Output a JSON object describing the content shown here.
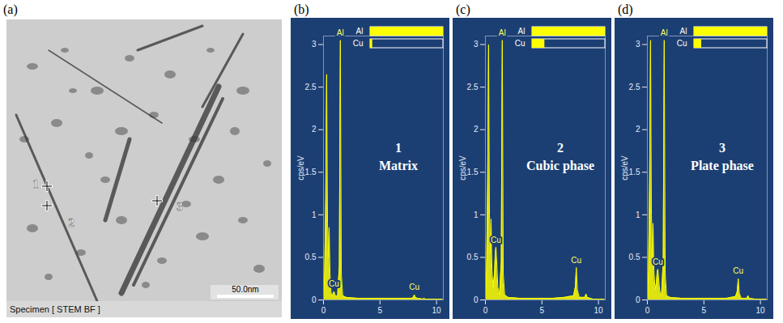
{
  "micrograph": {
    "panel_label": "(a)",
    "caption": "Specimen [ STEM BF ]",
    "scale_bar": "50.0nm",
    "points": [
      "1",
      "2",
      "3"
    ]
  },
  "chart_data": [
    {
      "type": "area",
      "panel_label": "(b)",
      "title": "1",
      "subtitle": "Matrix",
      "y_label": "cps/eV",
      "color": "#ffff00",
      "grid": false,
      "xlim": [
        0,
        10.6
      ],
      "xticks": [
        0,
        5,
        10
      ],
      "ylim": [
        0,
        3.1
      ],
      "yticks": [
        0,
        0.5,
        1,
        1.5,
        2,
        2.5,
        3
      ],
      "x": [
        0,
        0.1,
        0.2,
        0.28,
        0.36,
        0.44,
        0.5,
        0.58,
        0.68,
        0.8,
        0.87,
        0.93,
        1.0,
        1.1,
        1.25,
        1.4,
        1.49,
        1.58,
        1.7,
        2,
        3,
        4,
        5,
        6,
        7,
        7.8,
        7.95,
        8.04,
        8.13,
        8.3,
        8.8,
        8.9,
        9.0,
        9.5,
        10,
        10.5
      ],
      "values": [
        0,
        0.3,
        1.2,
        2.65,
        0.9,
        0.5,
        0.85,
        0.3,
        0.08,
        0.05,
        0.08,
        0.1,
        0.07,
        0.04,
        0.05,
        0.4,
        3.05,
        0.3,
        0.05,
        0.03,
        0.02,
        0.02,
        0.02,
        0.02,
        0.02,
        0.02,
        0.03,
        0.06,
        0.03,
        0.02,
        0.01,
        0.02,
        0.01,
        0.01,
        0.01,
        0.01
      ],
      "annotations": [
        {
          "text": "Al",
          "x": 1.49
        },
        {
          "text": "Cu",
          "x": 0.93
        },
        {
          "text": "Cu",
          "x": 8.04
        }
      ],
      "composition": {
        "categories": [
          "Al",
          "Cu"
        ],
        "values": [
          100,
          3
        ],
        "xlim": [
          0,
          100
        ]
      }
    },
    {
      "type": "area",
      "panel_label": "(c)",
      "title": "2",
      "subtitle": "Cubic phase",
      "y_label": "cps/eV",
      "color": "#ffff00",
      "grid": false,
      "xlim": [
        0,
        10.6
      ],
      "xticks": [
        0,
        5,
        10
      ],
      "ylim": [
        0,
        3.1
      ],
      "yticks": [
        0,
        0.5,
        1,
        1.5,
        2,
        2.5,
        3
      ],
      "x": [
        0,
        0.1,
        0.2,
        0.28,
        0.36,
        0.44,
        0.5,
        0.58,
        0.68,
        0.8,
        0.87,
        0.93,
        1.0,
        1.1,
        1.25,
        1.4,
        1.49,
        1.58,
        1.7,
        2,
        3,
        4,
        5,
        6,
        7,
        7.8,
        7.95,
        8.04,
        8.13,
        8.3,
        8.8,
        8.9,
        9.0,
        9.5,
        10,
        10.5
      ],
      "values": [
        0,
        0.35,
        1.4,
        3.0,
        1.0,
        0.55,
        0.95,
        0.35,
        0.15,
        0.3,
        0.55,
        0.62,
        0.45,
        0.15,
        0.06,
        0.45,
        3.05,
        0.3,
        0.06,
        0.03,
        0.02,
        0.02,
        0.02,
        0.02,
        0.03,
        0.05,
        0.15,
        0.38,
        0.12,
        0.03,
        0.03,
        0.07,
        0.03,
        0.01,
        0.01,
        0.01
      ],
      "annotations": [
        {
          "text": "Al",
          "x": 1.49
        },
        {
          "text": "Cu",
          "x": 0.93
        },
        {
          "text": "Cu",
          "x": 8.04
        }
      ],
      "composition": {
        "categories": [
          "Al",
          "Cu"
        ],
        "values": [
          100,
          17
        ],
        "xlim": [
          0,
          100
        ]
      }
    },
    {
      "type": "area",
      "panel_label": "(d)",
      "title": "3",
      "subtitle": "Plate phase",
      "y_label": "cps/eV",
      "color": "#ffff00",
      "grid": false,
      "xlim": [
        0,
        10.6
      ],
      "xticks": [
        0,
        5,
        10
      ],
      "ylim": [
        0,
        3.1
      ],
      "yticks": [
        0,
        0.5,
        1,
        1.5,
        2,
        2.5,
        3
      ],
      "x": [
        0,
        0.1,
        0.2,
        0.28,
        0.36,
        0.44,
        0.5,
        0.58,
        0.68,
        0.8,
        0.87,
        0.93,
        1.0,
        1.1,
        1.25,
        1.4,
        1.49,
        1.58,
        1.7,
        2,
        3,
        4,
        5,
        6,
        7,
        7.8,
        7.95,
        8.04,
        8.13,
        8.3,
        8.8,
        8.9,
        9.0,
        9.5,
        10,
        10.5
      ],
      "values": [
        0,
        0.35,
        1.4,
        3.05,
        1.0,
        0.5,
        0.9,
        0.35,
        0.12,
        0.2,
        0.33,
        0.36,
        0.25,
        0.1,
        0.05,
        0.45,
        3.05,
        0.3,
        0.05,
        0.03,
        0.02,
        0.02,
        0.02,
        0.02,
        0.02,
        0.04,
        0.1,
        0.25,
        0.08,
        0.02,
        0.02,
        0.05,
        0.02,
        0.01,
        0.01,
        0.01
      ],
      "annotations": [
        {
          "text": "Al",
          "x": 1.49
        },
        {
          "text": "Cu",
          "x": 0.93
        },
        {
          "text": "Cu",
          "x": 8.04
        }
      ],
      "composition": {
        "categories": [
          "Al",
          "Cu"
        ],
        "values": [
          100,
          10
        ],
        "xlim": [
          0,
          100
        ]
      }
    }
  ]
}
